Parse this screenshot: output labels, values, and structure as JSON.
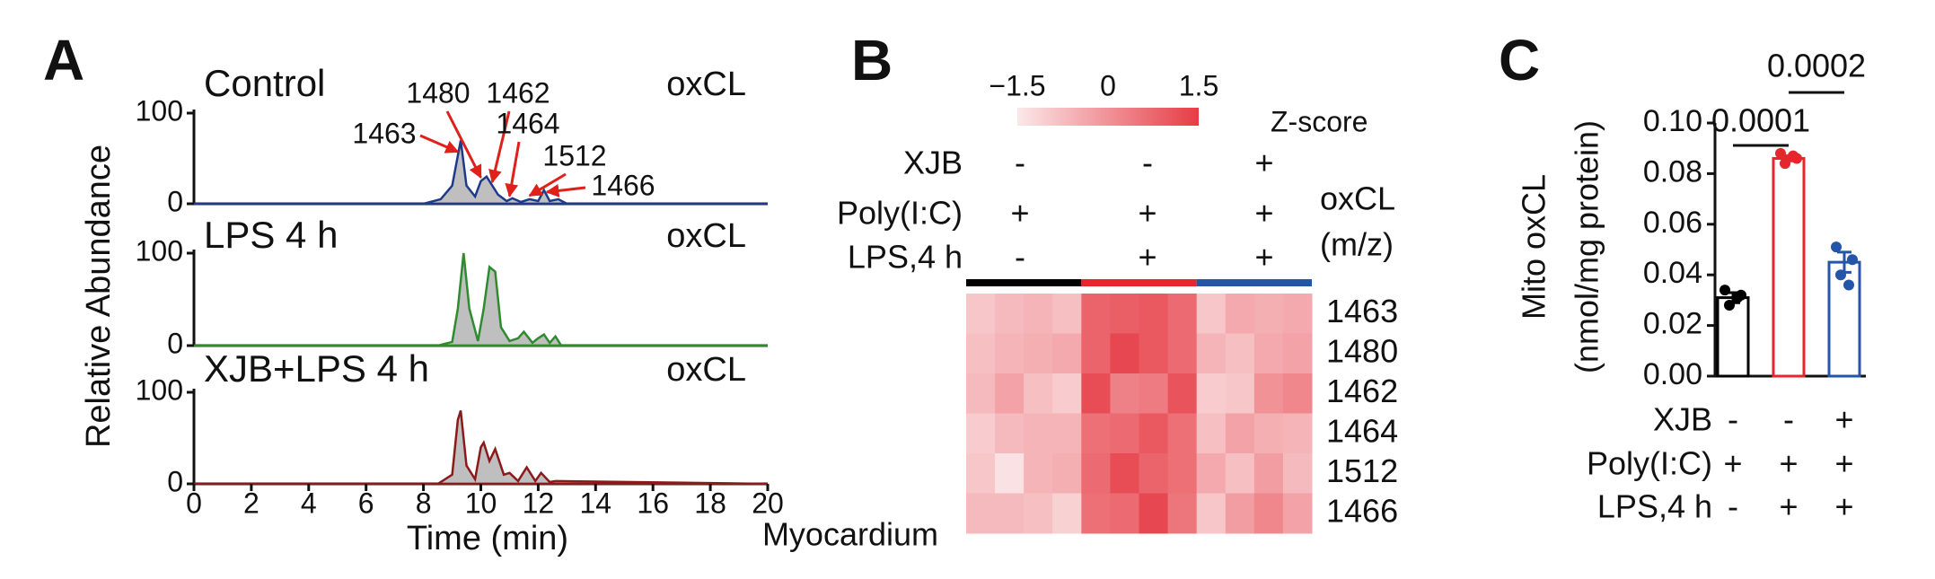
{
  "chart_data": [
    {
      "type": "line",
      "panel": "A",
      "xlabel": "Time (min)",
      "ylabel": "Relative Abundance",
      "xlim": [
        0,
        20
      ],
      "xticks": [
        0,
        2,
        4,
        6,
        8,
        10,
        12,
        14,
        16,
        18,
        20
      ],
      "ylim": [
        0,
        100
      ],
      "yticks": [
        0,
        100
      ],
      "fill_color": "#a9a9a9",
      "series": [
        {
          "name": "Control",
          "tag": "oxCL",
          "color": "#1f3a8a",
          "x": [
            0,
            8,
            8.6,
            9.0,
            9.3,
            9.5,
            9.8,
            10.0,
            10.2,
            10.4,
            10.6,
            10.9,
            11.1,
            11.4,
            11.7,
            12.0,
            12.2,
            12.4,
            12.7,
            13,
            20
          ],
          "values": [
            0,
            0,
            5,
            20,
            70,
            20,
            8,
            25,
            30,
            20,
            10,
            3,
            6,
            2,
            5,
            3,
            15,
            3,
            5,
            0,
            0
          ]
        },
        {
          "name": "LPS 4 h",
          "tag": "oxCL",
          "color": "#2e8b2e",
          "x": [
            0,
            8.5,
            9.0,
            9.2,
            9.4,
            9.6,
            9.9,
            10.1,
            10.3,
            10.5,
            10.7,
            11.0,
            11.3,
            11.5,
            11.8,
            12.0,
            12.2,
            12.4,
            12.6,
            12.8,
            20
          ],
          "values": [
            0,
            0,
            4,
            40,
            100,
            40,
            5,
            40,
            85,
            80,
            20,
            5,
            8,
            15,
            3,
            8,
            12,
            3,
            10,
            0,
            0
          ]
        },
        {
          "name": "XJB+LPS 4 h",
          "tag": "oxCL",
          "color": "#8b1a1a",
          "x": [
            0,
            8.5,
            9.0,
            9.2,
            9.3,
            9.5,
            9.8,
            10.0,
            10.1,
            10.3,
            10.5,
            10.8,
            11.0,
            11.3,
            11.6,
            11.9,
            12.1,
            12.4,
            12.6,
            20
          ],
          "values": [
            0,
            0,
            10,
            70,
            80,
            20,
            5,
            40,
            45,
            25,
            38,
            10,
            12,
            3,
            18,
            3,
            12,
            2,
            3,
            0
          ]
        }
      ],
      "annotations": [
        {
          "text": "1463",
          "x": 9.2
        },
        {
          "text": "1480",
          "x": 10.0
        },
        {
          "text": "1462",
          "x": 10.4
        },
        {
          "text": "1464",
          "x": 11.0
        },
        {
          "text": "1512",
          "x": 11.7
        },
        {
          "text": "1466",
          "x": 12.3
        }
      ],
      "annotation_color": "#e0201b",
      "footnote": "Myocardium"
    },
    {
      "type": "heatmap",
      "panel": "B",
      "zlim": [
        -1.5,
        1.5
      ],
      "zticks": [
        {
          "value": -1.5,
          "label": "−1.5"
        },
        0,
        1.5
      ],
      "zlabel": "Z-score",
      "colors": [
        "#fbe8e9",
        "#e63c45"
      ],
      "conditions": [
        {
          "name": "XJB",
          "values": [
            "-",
            "-",
            "+"
          ]
        },
        {
          "name": "Poly(I:C)",
          "values": [
            "+",
            "+",
            "+"
          ]
        },
        {
          "name": "LPS,4 h",
          "values": [
            "-",
            "+",
            "+"
          ]
        }
      ],
      "row_title": [
        "oxCL",
        "(m/z)"
      ],
      "group_colors": [
        "#000000",
        "#e5262d",
        "#2455a8"
      ],
      "rows": [
        "1463",
        "1480",
        "1462",
        "1464",
        "1512",
        "1466"
      ],
      "z": [
        [
          -0.9,
          -0.7,
          -0.6,
          -0.8,
          0.8,
          0.9,
          1.0,
          0.7,
          -0.9,
          -0.4,
          -0.5,
          -0.4
        ],
        [
          -0.8,
          -0.6,
          -0.5,
          -0.4,
          0.8,
          1.3,
          1.0,
          0.7,
          -0.6,
          -0.8,
          -0.4,
          -0.3
        ],
        [
          -0.7,
          -0.3,
          -0.8,
          -1.0,
          1.2,
          0.3,
          0.4,
          1.1,
          -1.0,
          -0.9,
          0.0,
          0.2
        ],
        [
          -1.0,
          -0.7,
          -0.6,
          -0.6,
          0.6,
          0.7,
          1.0,
          0.6,
          -0.8,
          -0.3,
          -0.5,
          -0.6
        ],
        [
          -0.9,
          -1.4,
          -0.6,
          -0.5,
          0.7,
          1.2,
          0.8,
          0.6,
          -0.4,
          -0.8,
          -0.2,
          -0.7
        ],
        [
          -0.7,
          -0.7,
          -0.8,
          -1.1,
          0.6,
          0.7,
          1.3,
          0.5,
          -0.9,
          -0.2,
          0.2,
          -0.3
        ]
      ]
    },
    {
      "type": "bar",
      "panel": "C",
      "ylabel": [
        "Mito oxCL",
        "(nmol/mg protein)"
      ],
      "ylim": [
        0,
        0.1
      ],
      "yticks": [
        {
          "value": 0,
          "label": "0.00"
        },
        0.02,
        0.04,
        0.06,
        0.08,
        {
          "value": 0.1,
          "label": "0.10"
        }
      ],
      "values": [
        0.031,
        0.086,
        0.045
      ],
      "errors": [
        0.002,
        0.001,
        0.004
      ],
      "colors": [
        "#000000",
        "#e5262d",
        "#2455a8"
      ],
      "points": [
        [
          0.034,
          0.032,
          0.028,
          0.031
        ],
        [
          0.088,
          0.086,
          0.084,
          0.087
        ],
        [
          0.051,
          0.046,
          0.04,
          0.036
        ]
      ],
      "significance": [
        {
          "label": "0.0001",
          "from": 0,
          "to": 1
        },
        {
          "label": "0.0002",
          "from": 1,
          "to": 2
        }
      ],
      "conditions": [
        {
          "name": "XJB",
          "values": [
            "-",
            "-",
            "+"
          ]
        },
        {
          "name": "Poly(I:C)",
          "values": [
            "+",
            "+",
            "+"
          ]
        },
        {
          "name": "LPS,4 h",
          "values": [
            "-",
            "+",
            "+"
          ]
        }
      ]
    }
  ]
}
